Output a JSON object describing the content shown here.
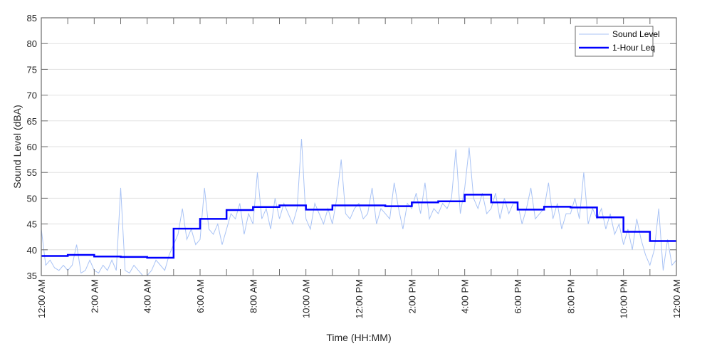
{
  "chart_data": {
    "type": "line",
    "title": "",
    "xlabel": "Time (HH:MM)",
    "ylabel": "Sound Level (dBA)",
    "ylim": [
      35,
      85
    ],
    "xlim_hours": [
      0,
      24
    ],
    "yticks": [
      "35",
      "40",
      "45",
      "50",
      "55",
      "60",
      "65",
      "70",
      "75",
      "80",
      "85"
    ],
    "xtick_labels": [
      "12:00 AM",
      "2:00 AM",
      "4:00 AM",
      "6:00 AM",
      "8:00 AM",
      "10:00 AM",
      "12:00 PM",
      "2:00 PM",
      "4:00 PM",
      "6:00 PM",
      "8:00 PM",
      "10:00 PM",
      "12:00 AM"
    ],
    "grid": "horizontal",
    "legend_position": "top-right",
    "colors": {
      "sound_level": "#a9c3f5",
      "leq": "#0000ff"
    },
    "series": [
      {
        "name": "Sound Level",
        "sample_interval_minutes": 10,
        "values": [
          44,
          37,
          38,
          36.5,
          36,
          37,
          36,
          37,
          41,
          35.5,
          36,
          38,
          36,
          35.5,
          37,
          36,
          38,
          36,
          52,
          36,
          35.5,
          37,
          36,
          35,
          35,
          36,
          38,
          37,
          36,
          39,
          41,
          43,
          48,
          42,
          44,
          41,
          42,
          52,
          44,
          43,
          45,
          41,
          44,
          47,
          46,
          49,
          43,
          47,
          45,
          55,
          46,
          48,
          44,
          50,
          46,
          49,
          47,
          45,
          48,
          61.5,
          46,
          44,
          49,
          47,
          45,
          48,
          45,
          50,
          57.5,
          47,
          46,
          48,
          49,
          46,
          47,
          52,
          45,
          48,
          47,
          46,
          53,
          48,
          44,
          49,
          48,
          51,
          47,
          53,
          46,
          48,
          47,
          49,
          48,
          50,
          59.5,
          47,
          52,
          59.8,
          50,
          48,
          51,
          47,
          48,
          51,
          46,
          50,
          47,
          49,
          49,
          45,
          48,
          52,
          46,
          47,
          48,
          53,
          46,
          49,
          44,
          47,
          47,
          50,
          46,
          55,
          45,
          48,
          46,
          48,
          44,
          47,
          43,
          45,
          41,
          44,
          40,
          46,
          42,
          39,
          37,
          40,
          48,
          36,
          42,
          37,
          38
        ]
      },
      {
        "name": "1-Hour Leq",
        "step": "hourly",
        "values": [
          38.8,
          39.0,
          38.7,
          38.6,
          38.45,
          44.1,
          46.0,
          47.7,
          48.3,
          48.6,
          47.8,
          48.6,
          48.6,
          48.45,
          49.2,
          49.4,
          50.7,
          49.2,
          47.8,
          48.35,
          48.2,
          46.3,
          43.5,
          41.7
        ]
      }
    ]
  }
}
